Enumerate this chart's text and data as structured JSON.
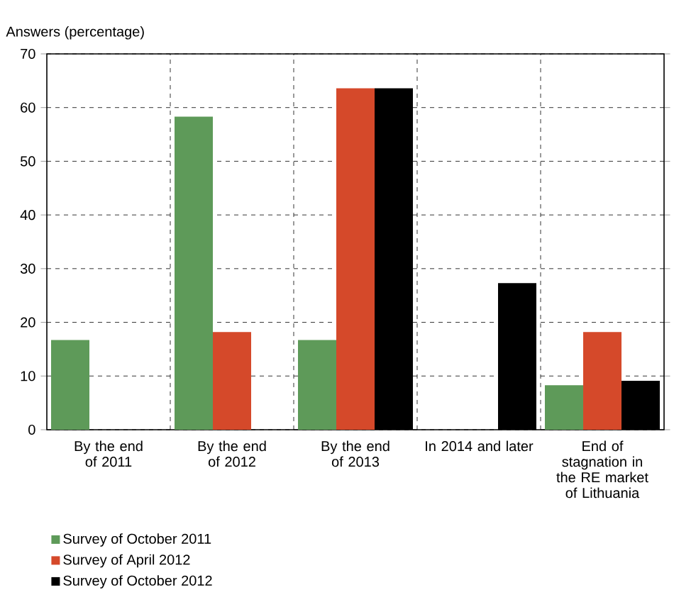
{
  "chart_data": {
    "type": "bar",
    "ylabel": "Answers (percentage)",
    "categories": [
      "By the end of 2011",
      "By the end of 2012",
      "By the end of 2013",
      "In 2014 and later",
      "End of stagnation in the RE market of Lithuania"
    ],
    "series": [
      {
        "name": "Survey of October 2011",
        "color": "#5e9a59",
        "values": [
          16.7,
          58.3,
          16.7,
          null,
          8.3
        ]
      },
      {
        "name": "Survey of April 2012",
        "color": "#d5492a",
        "values": [
          null,
          18.2,
          63.6,
          null,
          18.2
        ]
      },
      {
        "name": "Survey of October 2012",
        "color": "#000000",
        "values": [
          null,
          null,
          63.6,
          27.3,
          9.1
        ]
      }
    ],
    "ylim": [
      0,
      70
    ],
    "yticks": [
      0,
      10,
      20,
      30,
      40,
      50,
      60,
      70
    ],
    "grid": true,
    "legend": "bottom left"
  }
}
